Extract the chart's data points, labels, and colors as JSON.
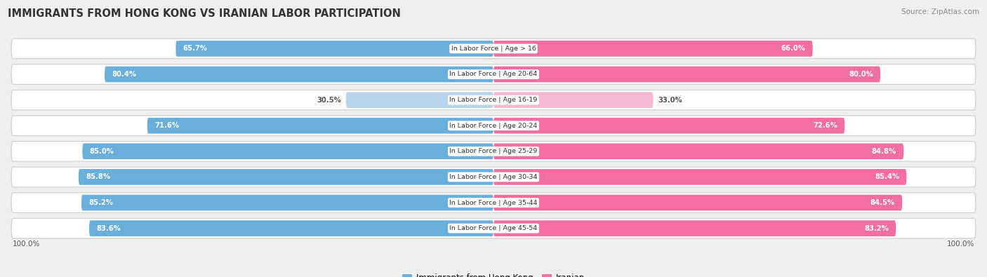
{
  "title": "IMMIGRANTS FROM HONG KONG VS IRANIAN LABOR PARTICIPATION",
  "source": "Source: ZipAtlas.com",
  "categories": [
    "In Labor Force | Age > 16",
    "In Labor Force | Age 20-64",
    "In Labor Force | Age 16-19",
    "In Labor Force | Age 20-24",
    "In Labor Force | Age 25-29",
    "In Labor Force | Age 30-34",
    "In Labor Force | Age 35-44",
    "In Labor Force | Age 45-54"
  ],
  "hk_values": [
    65.7,
    80.4,
    30.5,
    71.6,
    85.0,
    85.8,
    85.2,
    83.6
  ],
  "iranian_values": [
    66.0,
    80.0,
    33.0,
    72.6,
    84.8,
    85.4,
    84.5,
    83.2
  ],
  "hk_color": "#6aaedb",
  "hk_color_light": "#b8d4ea",
  "iranian_color": "#f06fa0",
  "iranian_color_light": "#f5b8d0",
  "bg_color": "#efefef",
  "row_bg_color": "#ffffff",
  "row_bg_color2": "#e8e8e8",
  "label_white": "#ffffff",
  "label_dark": "#555555",
  "center_label_bg": "#ffffff",
  "legend_hk": "Immigrants from Hong Kong",
  "legend_iranian": "Iranian",
  "bottom_label": "100.0%"
}
